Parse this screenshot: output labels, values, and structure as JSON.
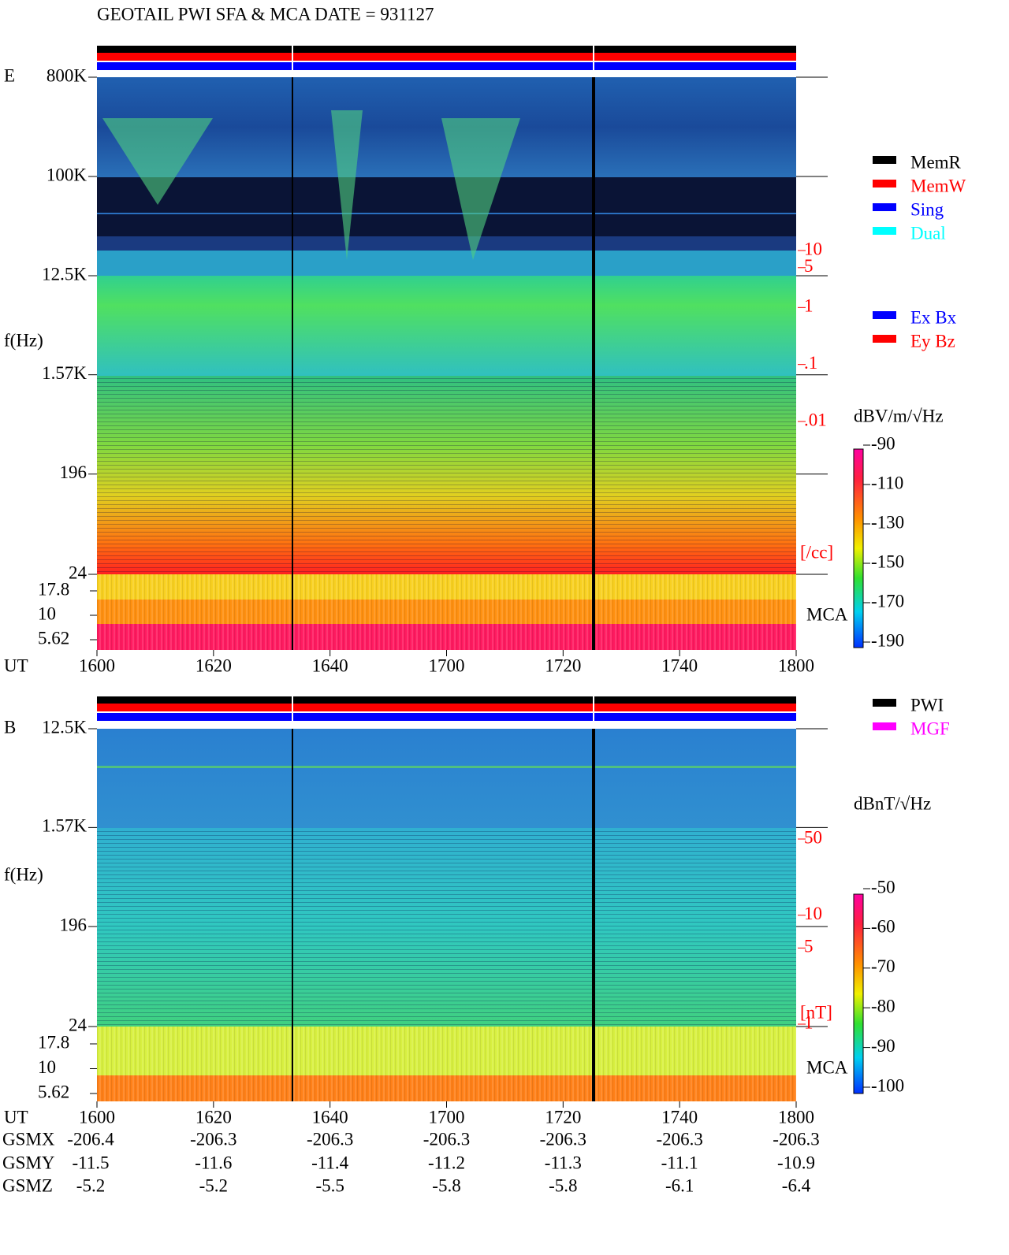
{
  "title": "GEOTAIL  PWI SFA & MCA   DATE = 931127",
  "chart_data": [
    {
      "type": "spectrogram",
      "panel_label": "E",
      "y_label": "f(Hz)",
      "x_label": "UT",
      "log_y": true,
      "ylim": [
        24,
        800000
      ],
      "yticks": [
        {
          "value": 800000,
          "label": "800K"
        },
        {
          "value": 100000,
          "label": "100K"
        },
        {
          "value": 12500,
          "label": "12.5K"
        },
        {
          "value": 1570,
          "label": "1.57K"
        },
        196,
        24
      ],
      "mca_label": "MCA",
      "mca_ylim": [
        5.62,
        17.8
      ],
      "mca_ticks": [
        17.8,
        10,
        5.62
      ],
      "xticks": [
        "1600",
        "1620",
        "1640",
        "1700",
        "1720",
        "1740",
        "1800"
      ],
      "y2_label": "[/cc]",
      "y2_log": true,
      "y2lim": [
        0.01,
        10
      ],
      "y2ticks": [
        10,
        5,
        1,
        {
          "value": 0.1,
          "label": ".1"
        },
        {
          "value": 0.01,
          "label": ".01"
        }
      ],
      "y2_color": "#ff0000",
      "colorbar": {
        "label": "dBV/m/√Hz",
        "lim": [
          -190,
          -90
        ],
        "ticks": [
          -90,
          -110,
          -130,
          -150,
          -170,
          -190
        ]
      },
      "legends": [
        [
          {
            "name": "MemR",
            "color": "#000000"
          },
          {
            "name": "MemW",
            "color": "#ff0000"
          },
          {
            "name": "Sing",
            "color": "#0000ff"
          },
          {
            "name": "Dual",
            "color": "#00ffff"
          }
        ],
        [
          {
            "name": "Ex Bx",
            "color": "#0000ff"
          },
          {
            "name": "Ey Bz",
            "color": "#ff0000"
          }
        ]
      ]
    },
    {
      "type": "spectrogram",
      "panel_label": "B",
      "y_label": "f(Hz)",
      "x_label": "UT",
      "log_y": true,
      "ylim": [
        24,
        12500
      ],
      "yticks": [
        {
          "value": 12500,
          "label": "12.5K"
        },
        {
          "value": 1570,
          "label": "1.57K"
        },
        196,
        24
      ],
      "mca_label": "MCA",
      "mca_ylim": [
        5.62,
        17.8
      ],
      "mca_ticks": [
        17.8,
        10,
        5.62
      ],
      "xticks": [
        "1600",
        "1620",
        "1640",
        "1700",
        "1720",
        "1740",
        "1800"
      ],
      "y2_label": "[nT]",
      "y2_log": true,
      "y2lim": [
        1,
        50
      ],
      "y2ticks": [
        50,
        10,
        5,
        1
      ],
      "y2_color": "#ff0000",
      "colorbar": {
        "label": "dBnT/√Hz",
        "lim": [
          -100,
          -50
        ],
        "ticks": [
          -50,
          -60,
          -70,
          -80,
          -90,
          -100
        ]
      },
      "legends": [
        [
          {
            "name": "PWI",
            "color": "#000000"
          },
          {
            "name": "MGF",
            "color": "#ff00ff"
          }
        ]
      ]
    }
  ],
  "orbit": {
    "rows": [
      {
        "label": "GSMX",
        "values": [
          -206.4,
          -206.3,
          -206.3,
          -206.3,
          -206.3,
          -206.3,
          -206.3
        ]
      },
      {
        "label": "GSMY",
        "values": [
          -11.5,
          -11.6,
          -11.4,
          -11.2,
          -11.3,
          -11.1,
          -10.9
        ]
      },
      {
        "label": "GSMZ",
        "values": [
          -5.2,
          -5.2,
          -5.5,
          -5.8,
          -5.8,
          -6.1,
          -6.4
        ]
      }
    ]
  }
}
